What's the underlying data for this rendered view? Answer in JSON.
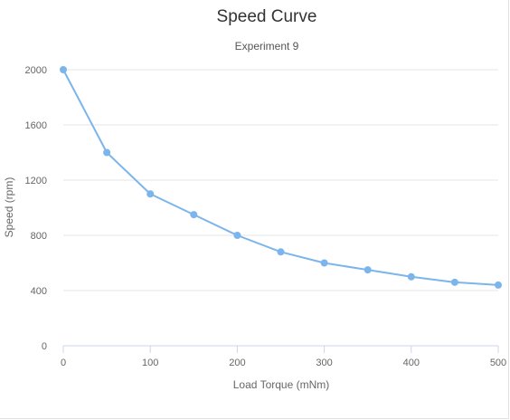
{
  "chart_data": {
    "type": "line",
    "title": "Speed Curve",
    "subtitle": "Experiment 9",
    "xlabel": "Load Torque (mNm)",
    "ylabel": "Speed (rpm)",
    "xlim": [
      0,
      500
    ],
    "ylim": [
      0,
      2000
    ],
    "x_ticks": [
      0,
      100,
      200,
      300,
      400,
      500
    ],
    "y_ticks": [
      0,
      400,
      800,
      1200,
      1600,
      2000
    ],
    "grid": "horizontal",
    "legend": "none",
    "series": [
      {
        "color": "#7cb5ec",
        "x": [
          0,
          50,
          100,
          150,
          200,
          250,
          300,
          350,
          400,
          450,
          500
        ],
        "y": [
          2000,
          1400,
          1100,
          950,
          800,
          680,
          600,
          550,
          500,
          460,
          440
        ]
      }
    ]
  }
}
